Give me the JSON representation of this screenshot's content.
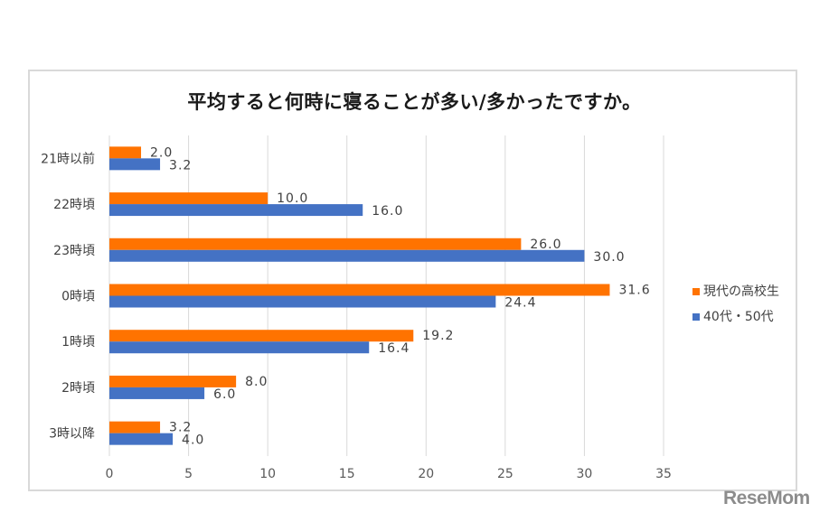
{
  "chart_data": {
    "type": "bar",
    "orientation": "horizontal",
    "title": "平均すると何時に寝ることが多い/多かったですか。",
    "categories": [
      "21時以前",
      "22時頃",
      "23時頃",
      "0時頃",
      "1時頃",
      "2時頃",
      "3時以降"
    ],
    "series": [
      {
        "name": "現代の高校生",
        "color": "#FF7300",
        "values": [
          2.0,
          10.0,
          26.0,
          31.6,
          19.2,
          8.0,
          3.2
        ],
        "labels": [
          "2.0",
          "10.0",
          "26.0",
          "31.6",
          "19.2",
          "8.0",
          "3.2"
        ]
      },
      {
        "name": "40代・50代",
        "color": "#4472C4",
        "values": [
          3.2,
          16.0,
          30.0,
          24.4,
          16.4,
          6.0,
          4.0
        ],
        "labels": [
          "3.2",
          "16.0",
          "30.0",
          "24.4",
          "16.4",
          "6.0",
          "4.0"
        ]
      }
    ],
    "xlim": [
      0,
      35
    ],
    "xticks": [
      "0",
      "5",
      "10",
      "15",
      "20",
      "25",
      "30",
      "35"
    ],
    "xlabel": "",
    "ylabel": "",
    "grid": true,
    "legend_position": "right"
  },
  "watermark": "ReseMom"
}
